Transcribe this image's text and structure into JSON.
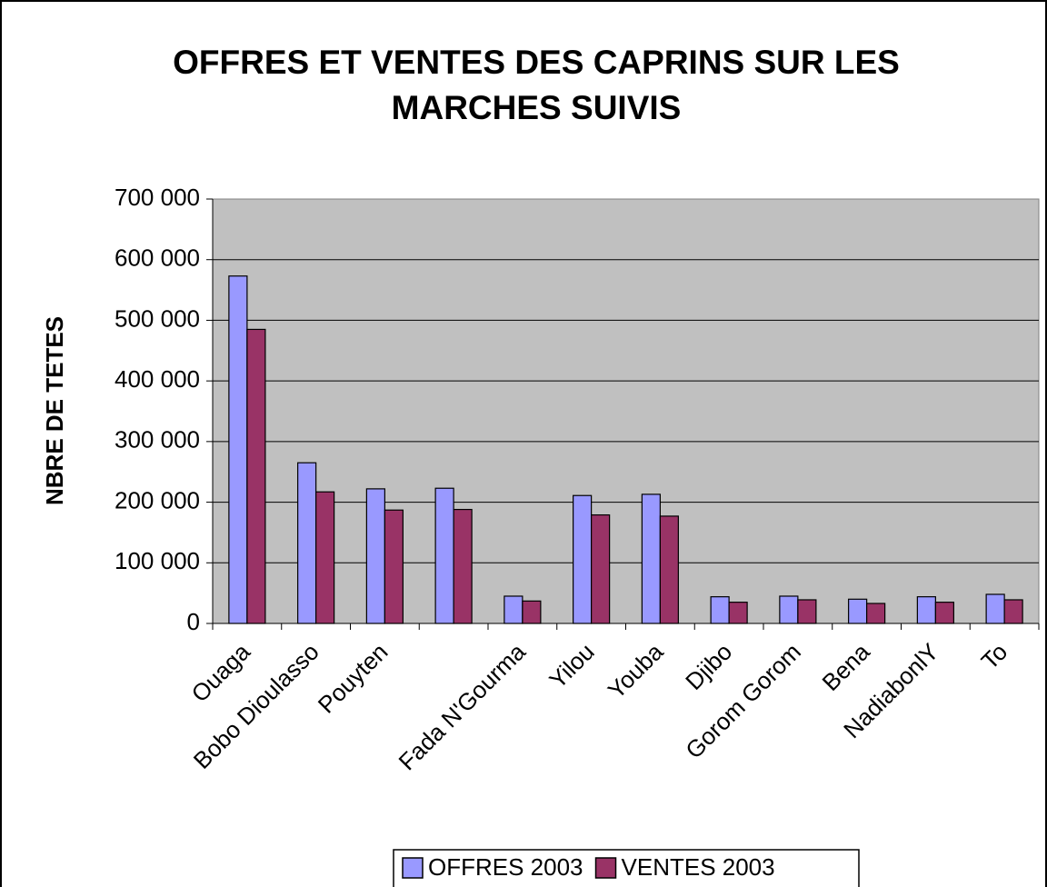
{
  "chart_data": {
    "type": "bar",
    "title": "OFFRES ET VENTES DES CAPRINS SUR LES MARCHES SUIVIS",
    "y_label": "NBRE DE TETES",
    "categories": [
      "Ouaga",
      "Bobo Dioulasso",
      "Pouyten",
      null,
      "Fada N'Gourma",
      "Yilou",
      "Youba",
      "Djibo",
      "Gorom Gorom",
      "Bena",
      "NadiabonlY",
      "To"
    ],
    "series": [
      {
        "name": "OFFRES 2003",
        "color": "#9999ff",
        "values": [
          573000,
          265000,
          222000,
          223000,
          45000,
          211000,
          213000,
          44000,
          45000,
          40000,
          44000,
          48000
        ]
      },
      {
        "name": "VENTES 2003",
        "color": "#993366",
        "values": [
          485000,
          217000,
          187000,
          188000,
          37000,
          179000,
          177000,
          35000,
          39000,
          33000,
          35000,
          39000
        ]
      }
    ],
    "ylim": [
      0,
      700000
    ],
    "yticks": [
      0,
      {
        "value": 100000,
        "label": "100 000"
      },
      {
        "value": 200000,
        "label": "200 000"
      },
      {
        "value": 300000,
        "label": "300 000"
      },
      {
        "value": 400000,
        "label": "400 000"
      },
      {
        "value": 500000,
        "label": "500 000"
      },
      {
        "value": 600000,
        "label": "600 000"
      },
      {
        "value": 700000,
        "label": "700 000"
      }
    ],
    "grid": true,
    "legend": "bottom"
  }
}
